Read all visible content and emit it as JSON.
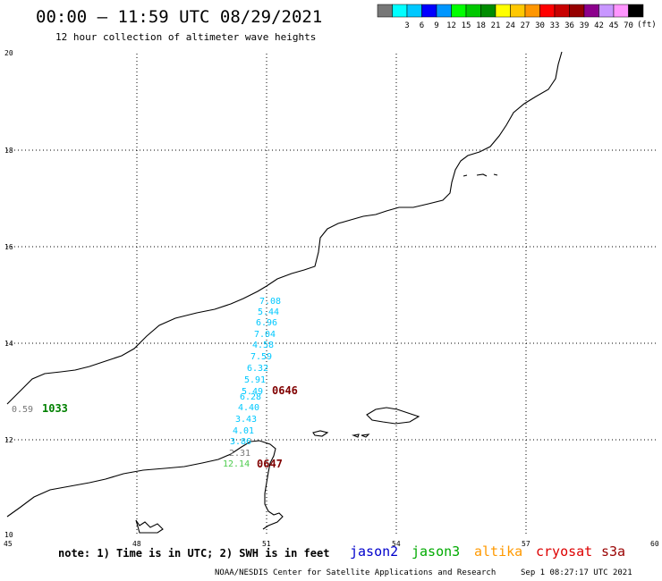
{
  "header": {
    "title": "00:00 – 11:59 UTC 08/29/2021",
    "subtitle": "12 hour collection of altimeter wave heights"
  },
  "scale": {
    "unit": "(ft)",
    "bins": [
      {
        "label": "",
        "color": "#777777"
      },
      {
        "label": "3",
        "color": "#00ffff"
      },
      {
        "label": "6",
        "color": "#00c8ff"
      },
      {
        "label": "9",
        "color": "#0000ff"
      },
      {
        "label": "12",
        "color": "#0096ff"
      },
      {
        "label": "15",
        "color": "#00ff00"
      },
      {
        "label": "18",
        "color": "#00c800"
      },
      {
        "label": "21",
        "color": "#008c00"
      },
      {
        "label": "24",
        "color": "#ffff00"
      },
      {
        "label": "27",
        "color": "#ffc800"
      },
      {
        "label": "30",
        "color": "#ff9600"
      },
      {
        "label": "33",
        "color": "#ff0000"
      },
      {
        "label": "36",
        "color": "#c80000"
      },
      {
        "label": "39",
        "color": "#960000"
      },
      {
        "label": "42",
        "color": "#8c008c"
      },
      {
        "label": "45",
        "color": "#c896ff"
      },
      {
        "label": "70",
        "color": "#ff96ff"
      },
      {
        "label": "",
        "color": "#000000"
      }
    ]
  },
  "axes": {
    "lon_ticks": [
      "45",
      "48",
      "51",
      "54",
      "57",
      "60"
    ],
    "lat_ticks": [
      "20",
      "18",
      "16",
      "14",
      "12",
      "10"
    ]
  },
  "observations": [
    {
      "value": "7.08",
      "color": "#00c8ff"
    },
    {
      "value": "5.44",
      "color": "#00c8ff"
    },
    {
      "value": "6.96",
      "color": "#00c8ff"
    },
    {
      "value": "7.04",
      "color": "#00c8ff"
    },
    {
      "value": "4.58",
      "color": "#00c8ff"
    },
    {
      "value": "7.59",
      "color": "#00c8ff"
    },
    {
      "value": "6.32",
      "color": "#00c8ff"
    },
    {
      "value": "5.91",
      "color": "#00c8ff"
    },
    {
      "value": "5.49",
      "color": "#00c8ff"
    },
    {
      "value": "6.28",
      "color": "#00c8ff"
    },
    {
      "value": "4.40",
      "color": "#00c8ff"
    },
    {
      "value": "3.43",
      "color": "#00c8ff"
    },
    {
      "value": "4.01",
      "color": "#00c8ff"
    },
    {
      "value": "3.86",
      "color": "#00c8ff"
    },
    {
      "value": "2.31",
      "color": "#777777"
    },
    {
      "value": "12.14",
      "color": "#4dcc4d"
    },
    {
      "value": "0.59",
      "color": "#777777"
    }
  ],
  "track_times": [
    {
      "value": "0646",
      "color": "#800000"
    },
    {
      "value": "0647",
      "color": "#800000"
    },
    {
      "value": "1033",
      "color": "#008000"
    }
  ],
  "footer": {
    "note": "note: 1) Time is in UTC; 2) SWH is in feet",
    "credit": "NOAA/NESDIS Center for Satellite Applications and Research",
    "timestamp": "Sep  1 08:27:17 UTC 2021",
    "legend": [
      {
        "name": "jason2",
        "color": "#0000cc"
      },
      {
        "name": "jason3",
        "color": "#00aa00"
      },
      {
        "name": "altika",
        "color": "#ff9900"
      },
      {
        "name": "cryosat",
        "color": "#dd0000"
      },
      {
        "name": "s3a",
        "color": "#990000"
      }
    ]
  }
}
